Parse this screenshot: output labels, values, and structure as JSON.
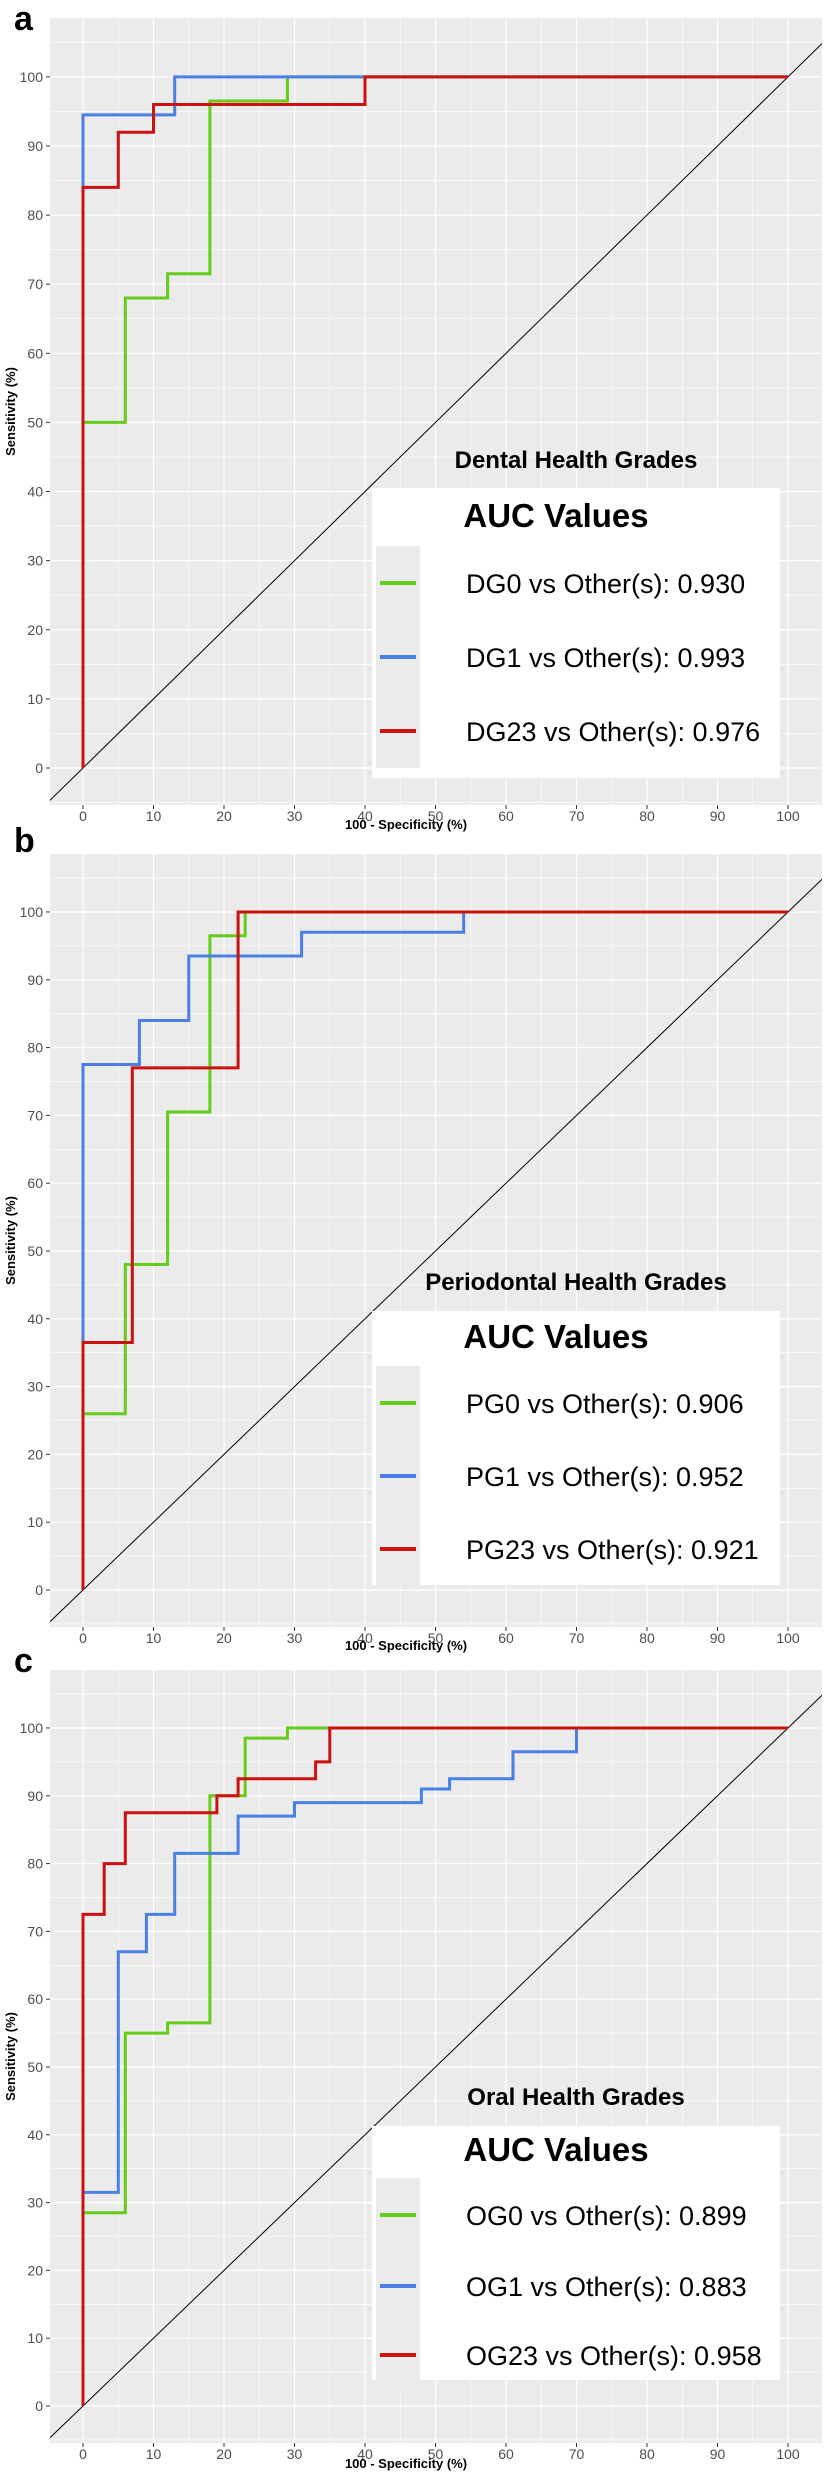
{
  "chart_data": [
    {
      "type": "line",
      "panel": "a",
      "title": "Dental Health Grades",
      "legend_title": "AUC Values",
      "xlabel": "100 - Specificity (%)",
      "ylabel": "Sensitivity (%)",
      "xlim": [
        0,
        100
      ],
      "ylim": [
        0,
        100
      ],
      "xticks": [
        0,
        10,
        20,
        30,
        40,
        50,
        60,
        70,
        80,
        90,
        100
      ],
      "yticks": [
        0,
        10,
        20,
        30,
        40,
        50,
        60,
        70,
        80,
        90,
        100
      ],
      "grid": true,
      "legend_position": "bottom-right",
      "diagonal": true,
      "series": [
        {
          "name": "DG0",
          "label": "DG0 vs Other(s): 0.930",
          "color": "#66cc1a",
          "x": [
            0,
            0,
            6,
            6,
            12,
            12,
            18,
            18,
            29,
            29,
            100
          ],
          "y": [
            0,
            50,
            50,
            68,
            68,
            71.5,
            71.5,
            96.5,
            96.5,
            100,
            100
          ]
        },
        {
          "name": "DG1",
          "label": "DG1 vs Other(s): 0.993",
          "color": "#4a7fe6",
          "x": [
            0,
            0,
            13,
            13,
            100
          ],
          "y": [
            0,
            94.5,
            94.5,
            100,
            100
          ]
        },
        {
          "name": "DG23",
          "label": "DG23 vs Other(s): 0.976",
          "color": "#cc1111",
          "x": [
            0,
            0,
            5,
            5,
            10,
            10,
            40,
            40,
            100
          ],
          "y": [
            0,
            84,
            84,
            92,
            92,
            96,
            96,
            100,
            100
          ]
        }
      ]
    },
    {
      "type": "line",
      "panel": "b",
      "title": "Periodontal Health Grades",
      "legend_title": "AUC Values",
      "xlabel": "100 - Specificity (%)",
      "ylabel": "Sensitivity (%)",
      "xlim": [
        0,
        100
      ],
      "ylim": [
        0,
        100
      ],
      "xticks": [
        0,
        10,
        20,
        30,
        40,
        50,
        60,
        70,
        80,
        90,
        100
      ],
      "yticks": [
        0,
        10,
        20,
        30,
        40,
        50,
        60,
        70,
        80,
        90,
        100
      ],
      "grid": true,
      "legend_position": "bottom-right",
      "diagonal": true,
      "series": [
        {
          "name": "PG0",
          "label": "PG0 vs Other(s): 0.906",
          "color": "#66cc1a",
          "x": [
            0,
            0,
            6,
            6,
            12,
            12,
            18,
            18,
            23,
            23,
            100
          ],
          "y": [
            0,
            26,
            26,
            48,
            48,
            70.5,
            70.5,
            96.5,
            96.5,
            100,
            100
          ]
        },
        {
          "name": "PG1",
          "label": "PG1 vs Other(s): 0.952",
          "color": "#4a7fe6",
          "x": [
            0,
            0,
            8,
            8,
            15,
            15,
            31,
            31,
            54,
            54,
            100
          ],
          "y": [
            0,
            77.5,
            77.5,
            84,
            84,
            93.5,
            93.5,
            97,
            97,
            100,
            100
          ]
        },
        {
          "name": "PG23",
          "label": "PG23 vs Other(s): 0.921",
          "color": "#cc1111",
          "x": [
            0,
            0,
            7,
            7,
            22,
            22,
            100
          ],
          "y": [
            0,
            36.5,
            36.5,
            77,
            77,
            100,
            100
          ]
        }
      ]
    },
    {
      "type": "line",
      "panel": "c",
      "title": "Oral Health Grades",
      "legend_title": "AUC Values",
      "xlabel": "100 - Specificity (%)",
      "ylabel": "Sensitivity (%)",
      "xlim": [
        0,
        100
      ],
      "ylim": [
        0,
        100
      ],
      "xticks": [
        0,
        10,
        20,
        30,
        40,
        50,
        60,
        70,
        80,
        90,
        100
      ],
      "yticks": [
        0,
        10,
        20,
        30,
        40,
        50,
        60,
        70,
        80,
        90,
        100
      ],
      "grid": true,
      "legend_position": "bottom-right",
      "diagonal": true,
      "series": [
        {
          "name": "OG0",
          "label": "OG0 vs Other(s): 0.899",
          "color": "#66cc1a",
          "x": [
            0,
            0,
            6,
            6,
            12,
            12,
            18,
            18,
            23,
            23,
            29,
            29,
            100
          ],
          "y": [
            0,
            28.5,
            28.5,
            55,
            55,
            56.5,
            56.5,
            90,
            90,
            98.5,
            98.5,
            100,
            100
          ]
        },
        {
          "name": "OG1",
          "label": "OG1 vs Other(s): 0.883",
          "color": "#4a7fe6",
          "x": [
            0,
            0,
            5,
            5,
            9,
            9,
            13,
            13,
            22,
            22,
            30,
            30,
            48,
            48,
            52,
            52,
            61,
            61,
            70,
            70,
            100
          ],
          "y": [
            0,
            31.5,
            31.5,
            67,
            67,
            72.5,
            72.5,
            81.5,
            81.5,
            87,
            87,
            89,
            89,
            91,
            91,
            92.5,
            92.5,
            96.5,
            96.5,
            100,
            100
          ]
        },
        {
          "name": "OG23",
          "label": "OG23 vs Other(s): 0.958",
          "color": "#cc1111",
          "x": [
            0,
            0,
            3,
            3,
            6,
            6,
            19,
            19,
            22,
            22,
            33,
            33,
            35,
            35,
            100
          ],
          "y": [
            0,
            72.5,
            72.5,
            80,
            80,
            87.5,
            87.5,
            90,
            90,
            92.5,
            92.5,
            95,
            95,
            100,
            100
          ]
        }
      ]
    }
  ]
}
